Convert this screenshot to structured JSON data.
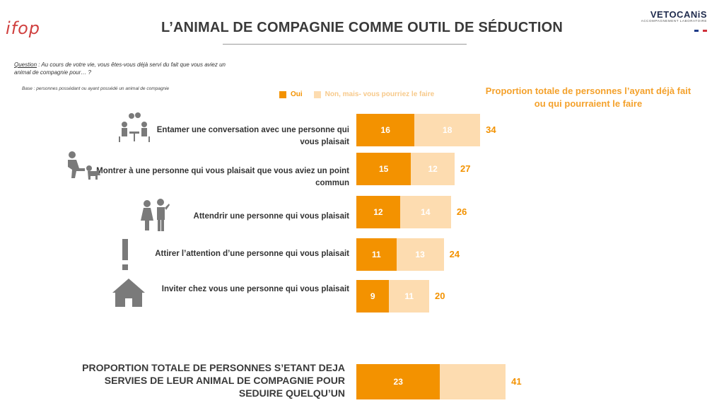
{
  "header": {
    "logo_left": "ifop",
    "title": "L’ANIMAL DE COMPAGNIE COMME OUTIL DE SÉDUCTION",
    "logo_right": "VETOCANiS",
    "logo_right_sub": "ACCOMPAGNEMENT LABORATOIRE"
  },
  "question": {
    "label": "Question",
    "text": " : Au cours de votre vie, vous êtes-vous déjà servi du fait que vous aviez un animal de compagnie pour… ?",
    "base": "Base : personnes possédant ou ayant possédé un animal de compagnie"
  },
  "legend": {
    "oui": "Oui",
    "non": "Non, mais- vous pourriez le faire"
  },
  "total_header": "Proportion totale de personnes l’ayant déjà fait ou qui pourraient le faire",
  "colors": {
    "oui": "#f39200",
    "non": "#fddcb0",
    "total_text": "#f39200",
    "icon": "#7a7a7a"
  },
  "chart_data": {
    "type": "bar",
    "orientation": "horizontal",
    "stacked": true,
    "categories": [
      "Entamer une conversation avec une personne qui vous plaisait",
      "Montrer à une personne qui vous plaisait que vous aviez un point commun",
      "Attendrir une personne qui vous plaisait",
      "Attirer l’attention d’une personne qui vous plaisait",
      "Inviter chez vous une personne qui vous plaisait"
    ],
    "icons": [
      "conversation-icon",
      "person-with-dog-icon",
      "couple-icon",
      "exclamation-icon",
      "house-icon"
    ],
    "series": [
      {
        "name": "Oui",
        "values": [
          16,
          15,
          12,
          11,
          9
        ]
      },
      {
        "name": "Non, mais- vous pourriez le faire",
        "values": [
          18,
          12,
          14,
          13,
          11
        ]
      }
    ],
    "totals": [
      34,
      27,
      26,
      24,
      20
    ],
    "summary": {
      "label": "PROPORTION TOTALE DE PERSONNES S’ETANT DEJA SERVIES DE LEUR ANIMAL DE COMPAGNIE POUR SEDUIRE QUELQU’UN",
      "oui": 23,
      "total": 41
    }
  }
}
